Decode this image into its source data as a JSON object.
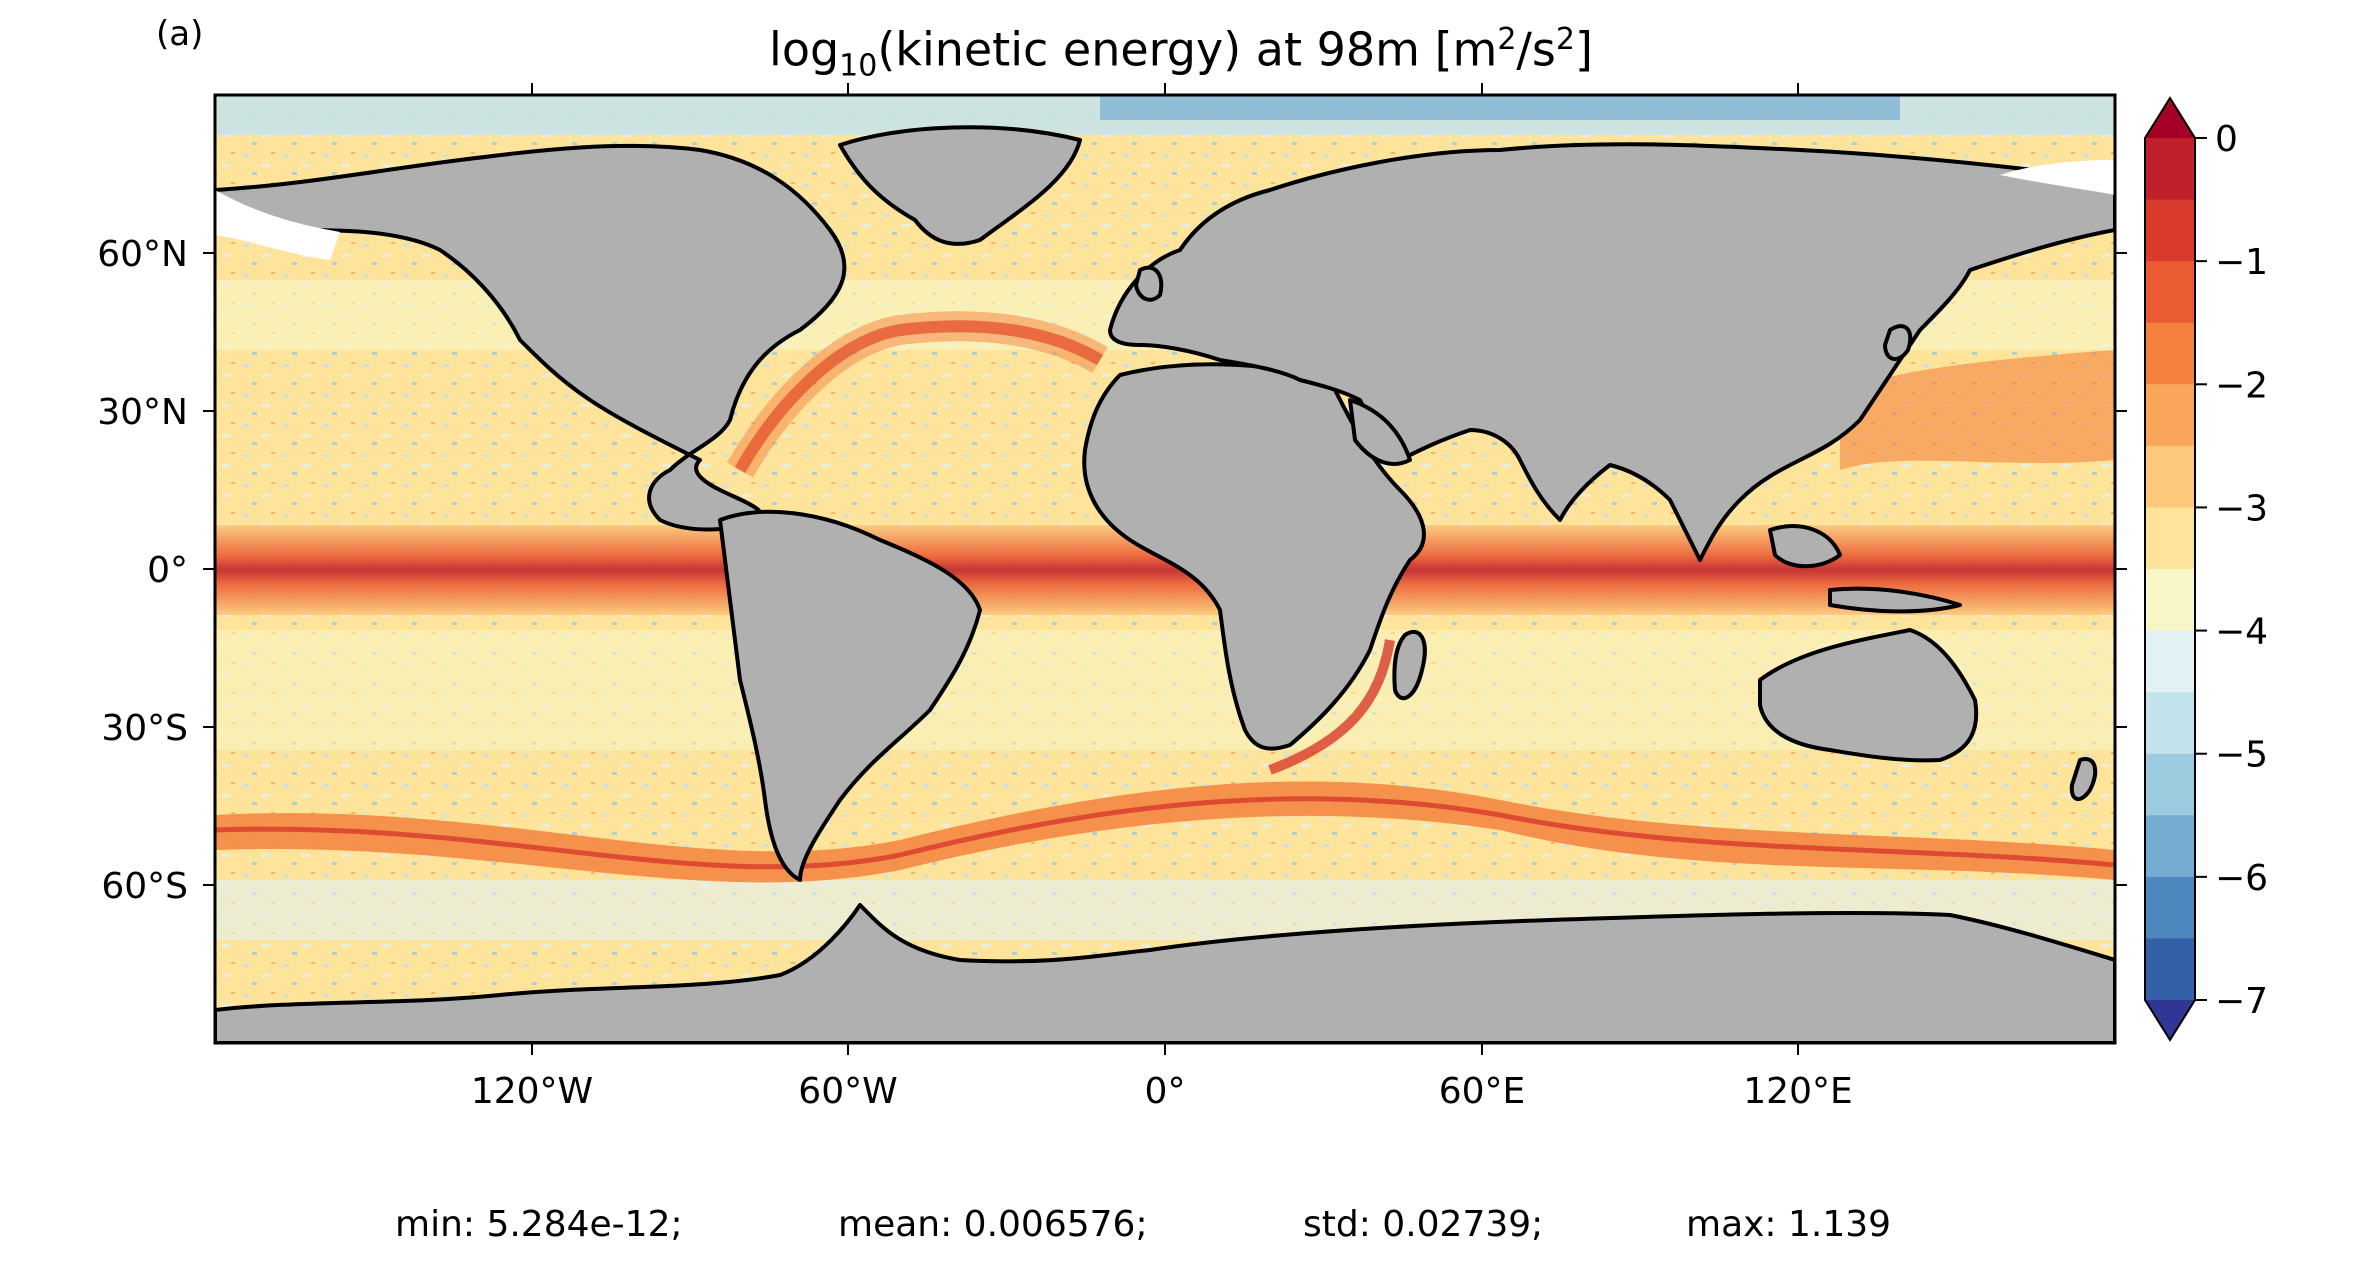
{
  "panel_label": "(a)",
  "title": {
    "pre": "log",
    "sub": "10",
    "mid": "(kinetic energy) at 98m [m",
    "sup1": "2",
    "mid2": "/s",
    "sup2": "2",
    "post": "]"
  },
  "map": {
    "type": "filled-contour world map",
    "projection": "PlateCarree",
    "lon_range": [
      -180,
      180
    ],
    "lat_range": [
      -90,
      90
    ],
    "land_color": "#b0b0b0",
    "coastline_color": "#000000"
  },
  "axes": {
    "y_ticks": [
      "60°N",
      "30°N",
      "0°",
      "30°S",
      "60°S"
    ],
    "x_ticks": [
      "120°W",
      "60°W",
      "0°",
      "60°E",
      "120°E"
    ]
  },
  "colorbar": {
    "ticks": [
      "0",
      "−1",
      "−2",
      "−3",
      "−4",
      "−5",
      "−6",
      "−7"
    ],
    "levels": [
      0,
      -0.5,
      -1,
      -1.5,
      -2,
      -2.5,
      -3,
      -3.5,
      -4,
      -4.5,
      -5,
      -5.5,
      -6,
      -6.5,
      -7
    ],
    "colors": [
      "#c0202a",
      "#d83a2c",
      "#ea5b33",
      "#f4823e",
      "#f9a65a",
      "#fcc87c",
      "#fee49a",
      "#f7f6c6",
      "#e2f1f3",
      "#c3e3ec",
      "#9ccbe0",
      "#76acd0",
      "#4f88bf",
      "#3460a8"
    ],
    "extend_max_color": "#a50026",
    "extend_min_color": "#313695"
  },
  "stats": [
    "min: 5.284e-12;",
    "mean: 0.006576;",
    "std: 0.02739;",
    "max: 1.139"
  ]
}
